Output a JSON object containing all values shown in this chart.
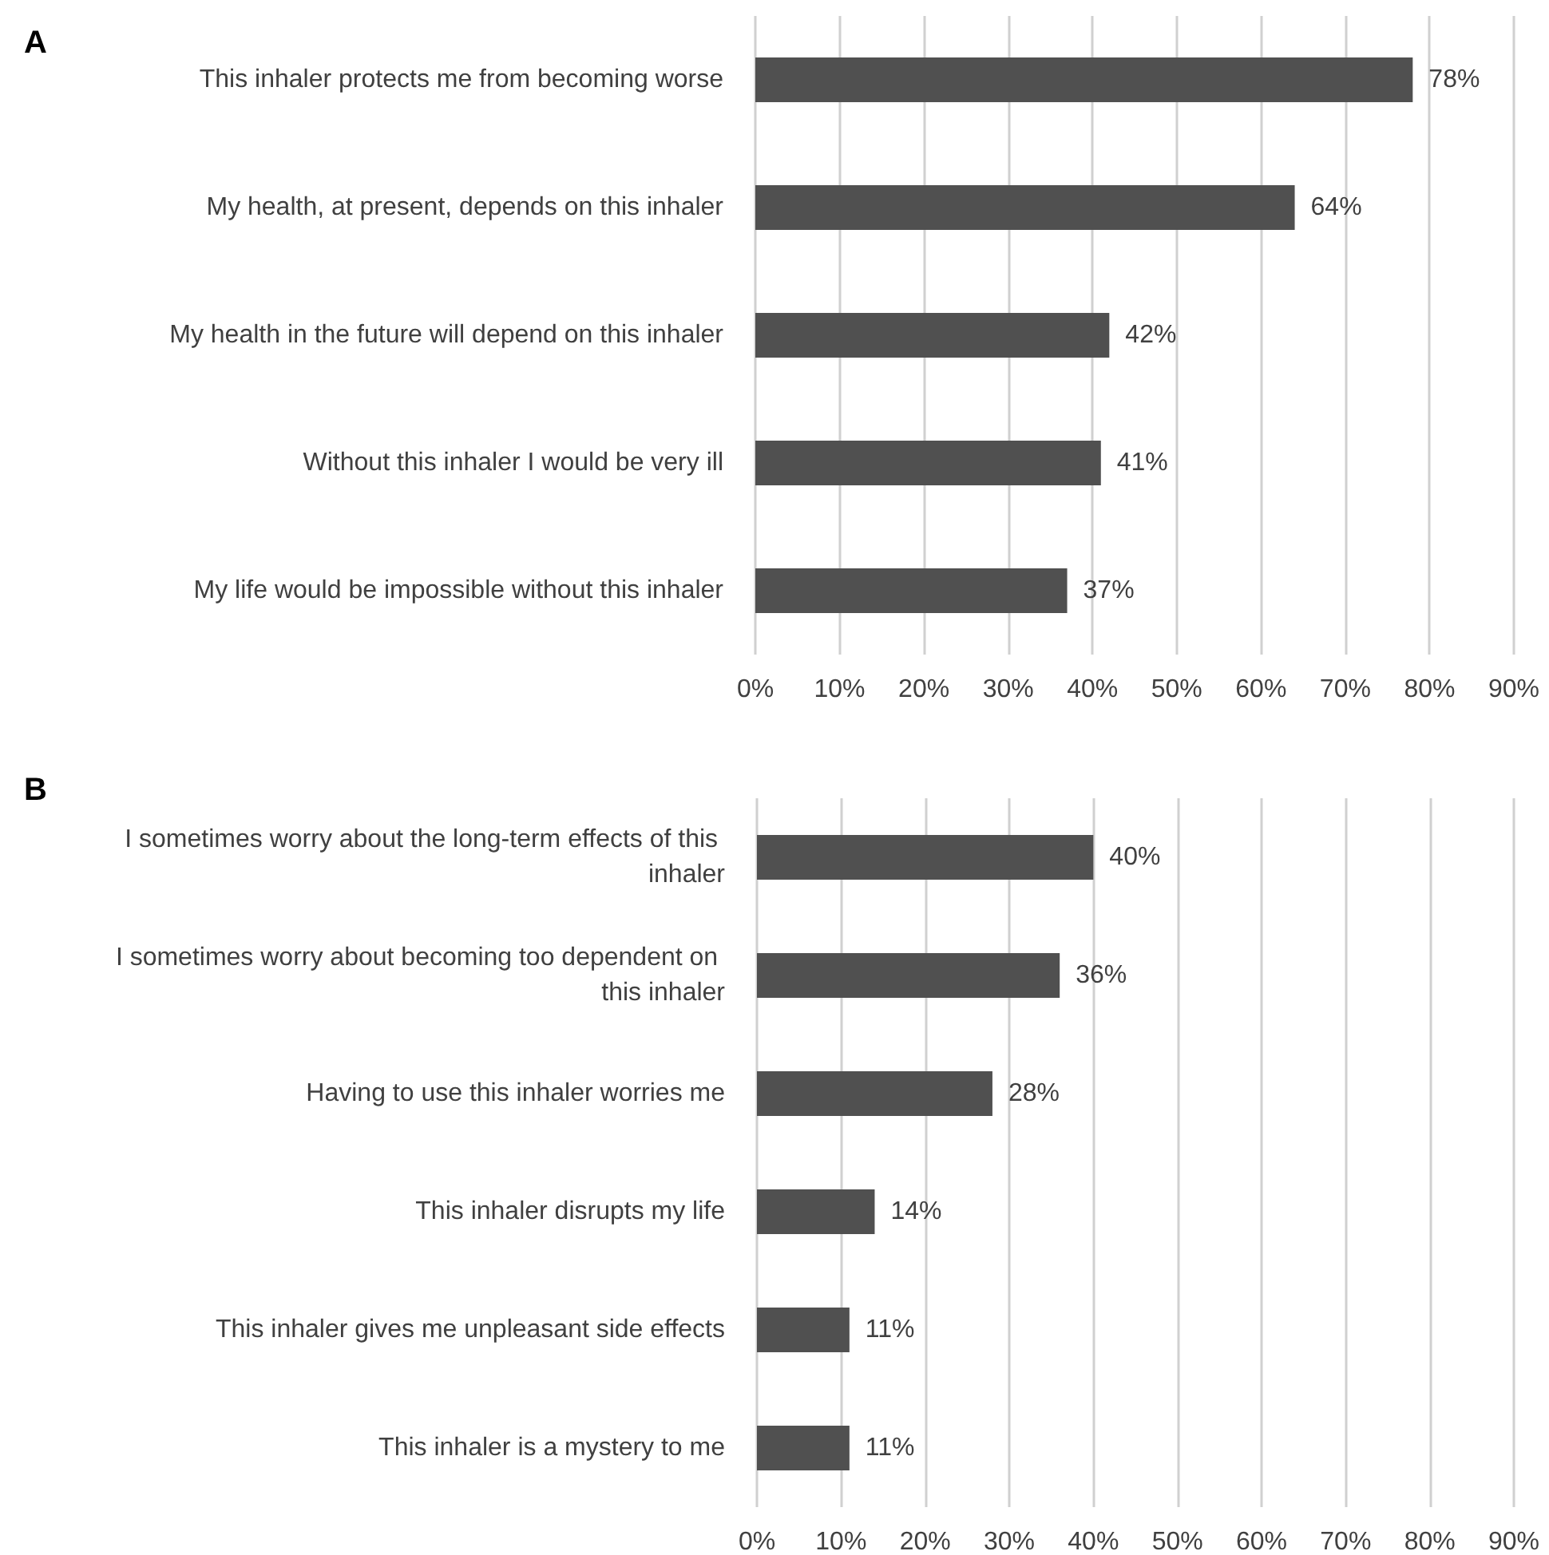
{
  "chart_data": [
    {
      "type": "bar",
      "title": "A",
      "orientation": "horizontal",
      "grid": "x",
      "categories": [
        "This inhaler protects me from becoming worse",
        "My health, at present, depends on this inhaler",
        "My health in the future will depend on this inhaler",
        "Without this inhaler I would be very ill",
        "My life would be impossible without this inhaler"
      ],
      "values": [
        78,
        64,
        42,
        41,
        37
      ],
      "value_labels": [
        "78%",
        "64%",
        "42%",
        "41%",
        "37%"
      ],
      "color": "#505050",
      "xlim": [
        0,
        90
      ],
      "xticks": [
        {
          "value": 0,
          "label": "0%"
        },
        {
          "value": 10,
          "label": "10%"
        },
        {
          "value": 20,
          "label": "20%"
        },
        {
          "value": 30,
          "label": "30%"
        },
        {
          "value": 40,
          "label": "40%"
        },
        {
          "value": 50,
          "label": "50%"
        },
        {
          "value": 60,
          "label": "60%"
        },
        {
          "value": 70,
          "label": "70%"
        },
        {
          "value": 80,
          "label": "80%"
        },
        {
          "value": 90,
          "label": "90%"
        }
      ]
    },
    {
      "type": "bar",
      "title": "B",
      "orientation": "horizontal",
      "grid": "x",
      "categories": [
        "I sometimes worry about the long-term effects of this inhaler",
        "I sometimes worry about becoming too dependent on this inhaler",
        "Having to use this inhaler worries me",
        "This inhaler disrupts my life",
        "This inhaler gives me unpleasant side effects",
        "This inhaler is a mystery to me"
      ],
      "values": [
        40,
        36,
        28,
        14,
        11,
        11
      ],
      "value_labels": [
        "40%",
        "36%",
        "28%",
        "14%",
        "11%",
        "11%"
      ],
      "color": "#505050",
      "xlim": [
        0,
        90
      ],
      "xticks": [
        {
          "value": 0,
          "label": "0%"
        },
        {
          "value": 10,
          "label": "10%"
        },
        {
          "value": 20,
          "label": "20%"
        },
        {
          "value": 30,
          "label": "30%"
        },
        {
          "value": 40,
          "label": "40%"
        },
        {
          "value": 50,
          "label": "50%"
        },
        {
          "value": 60,
          "label": "60%"
        },
        {
          "value": 70,
          "label": "70%"
        },
        {
          "value": 80,
          "label": "80%"
        },
        {
          "value": 90,
          "label": "90%"
        }
      ]
    }
  ]
}
